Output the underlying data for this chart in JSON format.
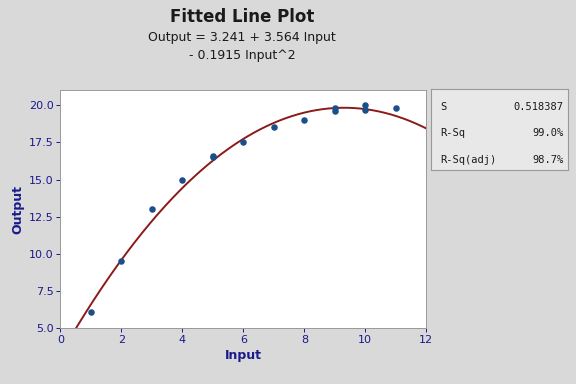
{
  "title": "Fitted Line Plot",
  "subtitle_line1": "Output = 3.241 + 3.564 Input",
  "subtitle_line2": "- 0.1915 Input^2",
  "xlabel": "Input",
  "ylabel": "Output",
  "x_data": [
    1,
    2,
    3,
    4,
    5,
    5,
    6,
    7,
    8,
    9,
    9,
    10,
    10,
    11
  ],
  "y_data": [
    6.1,
    9.5,
    13.0,
    15.0,
    16.5,
    16.6,
    17.5,
    18.5,
    19.0,
    19.6,
    19.8,
    19.7,
    20.0,
    19.8
  ],
  "coef": [
    3.241,
    3.564,
    -0.1915
  ],
  "xlim": [
    0,
    12
  ],
  "ylim": [
    5.0,
    21.0
  ],
  "xticks": [
    0,
    2,
    4,
    6,
    8,
    10,
    12
  ],
  "yticks": [
    5.0,
    7.5,
    10.0,
    12.5,
    15.0,
    17.5,
    20.0
  ],
  "dot_color": "#1B4F8A",
  "line_color": "#8B1A1A",
  "bg_color": "#D9D9D9",
  "plot_bg": "#FFFFFF",
  "stats_bg": "#E8E8E8",
  "title_color": "#1A1A1A",
  "subtitle_color": "#1A1A1A",
  "axis_label_color": "#1A1A8C",
  "tick_color": "#1A1A8C",
  "stats": {
    "S": "0.518387",
    "R-Sq": "99.0%",
    "R-Sq(adj)": "98.7%"
  },
  "title_fontsize": 12,
  "subtitle_fontsize": 9,
  "axis_label_fontsize": 9,
  "tick_fontsize": 8,
  "stats_fontsize": 7.5
}
